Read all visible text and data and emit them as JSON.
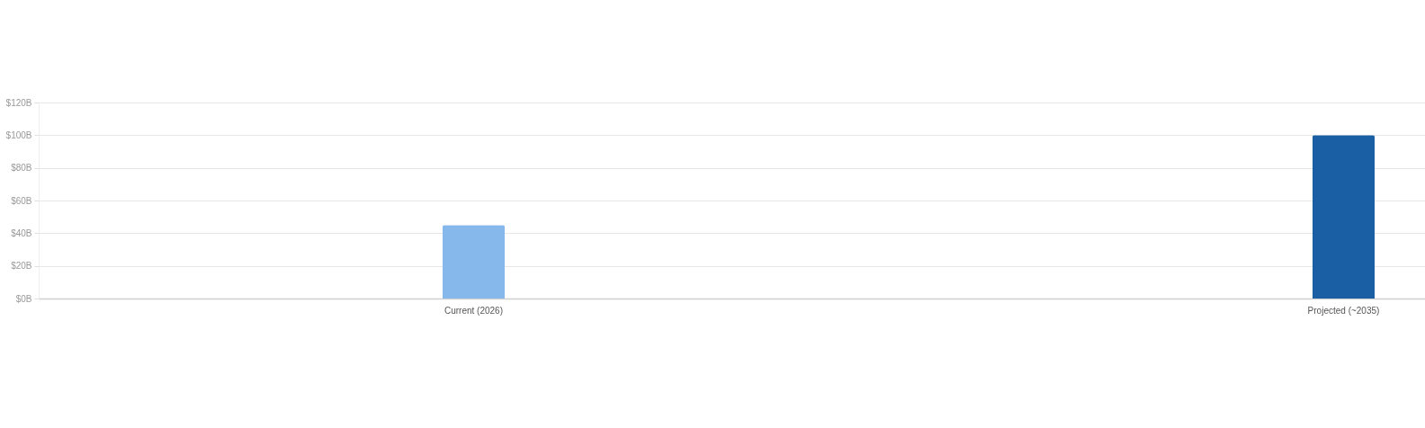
{
  "chart_data": {
    "type": "bar",
    "categories": [
      "Current (2026)",
      "Projected (~2035)"
    ],
    "values": [
      45,
      100
    ],
    "colors": [
      "#86b8ec",
      "#1a5fa3"
    ],
    "ylim": [
      0,
      120
    ],
    "yticks": [
      {
        "value": 0,
        "label": "$0B"
      },
      {
        "value": 20,
        "label": "$20B"
      },
      {
        "value": 40,
        "label": "$40B"
      },
      {
        "value": 60,
        "label": "$60B"
      },
      {
        "value": 80,
        "label": "$80B"
      },
      {
        "value": 100,
        "label": "$100B"
      },
      {
        "value": 120,
        "label": "$120B"
      }
    ],
    "grid": "y"
  }
}
